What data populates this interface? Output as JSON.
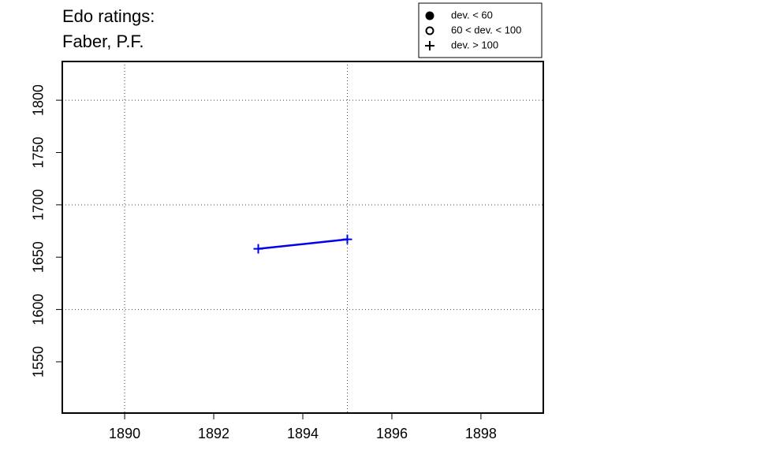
{
  "chart_data": {
    "type": "line",
    "title": [
      "Edo ratings:",
      "Faber, P.F."
    ],
    "x": [
      1893,
      1895
    ],
    "series": [
      {
        "name": "Faber, P.F.",
        "color": "#0000ee",
        "marker": "plus",
        "values": [
          1658,
          1667
        ]
      }
    ],
    "xlim": [
      1888.6,
      1899.4
    ],
    "xticks": [
      1890,
      1892,
      1894,
      1896,
      1898
    ],
    "ylim": [
      1501,
      1837
    ],
    "yticks": [
      1550,
      1600,
      1650,
      1700,
      1750,
      1800
    ],
    "xgrid": [
      1890,
      1895
    ],
    "ygrid": [
      1600,
      1700,
      1800
    ],
    "legend": {
      "position": "top-right",
      "entries": [
        {
          "label": "dev. < 60",
          "marker": "filled-circle"
        },
        {
          "label": "60 < dev. < 100",
          "marker": "open-circle"
        },
        {
          "label": "dev. > 100",
          "marker": "plus"
        }
      ]
    }
  }
}
